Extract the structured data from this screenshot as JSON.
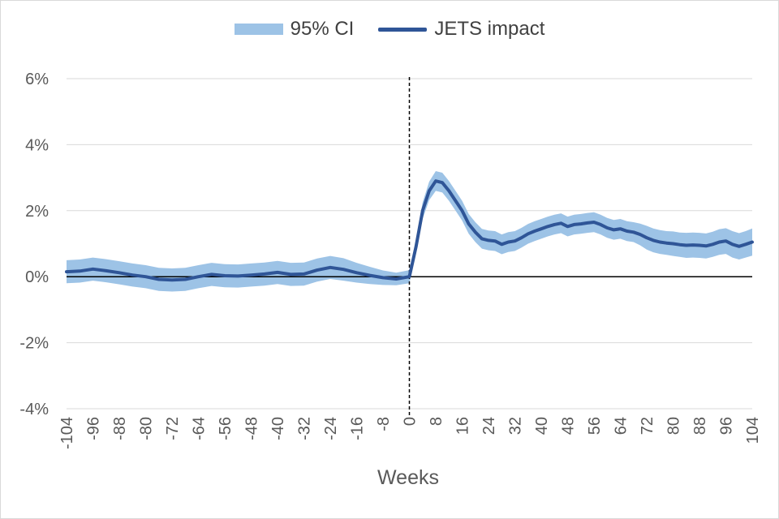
{
  "legend": {
    "band_label": "95% CI",
    "line_label": "JETS impact"
  },
  "colors": {
    "band": "#9dc3e6",
    "line": "#2f5597",
    "grid": "#d9d9d9",
    "axis": "#000000",
    "text": "#595959"
  },
  "chart_data": {
    "type": "line",
    "xlabel": "Weeks",
    "ylabel": "",
    "xlim": [
      -104,
      104
    ],
    "ylim": [
      -0.04,
      0.06
    ],
    "y_ticks": [
      -0.04,
      -0.02,
      0,
      0.02,
      0.04,
      0.06
    ],
    "y_tick_labels": [
      "-4%",
      "-2%",
      "0%",
      "2%",
      "4%",
      "6%"
    ],
    "x_ticks": [
      -104,
      -96,
      -88,
      -80,
      -72,
      -64,
      -56,
      -48,
      -40,
      -32,
      -24,
      -16,
      -8,
      0,
      8,
      16,
      24,
      32,
      40,
      48,
      56,
      64,
      72,
      80,
      88,
      96,
      104
    ],
    "x_tick_labels": [
      "-104",
      "-96",
      "-88",
      "-80",
      "-72",
      "-64",
      "-56",
      "-48",
      "-40",
      "-32",
      "-24",
      "-16",
      "-8",
      "0",
      "8",
      "16",
      "24",
      "32",
      "40",
      "48",
      "56",
      "64",
      "72",
      "80",
      "88",
      "96",
      "104"
    ],
    "grid": true,
    "legend_position": "top-center",
    "reference_line_x": 0,
    "series": [
      {
        "name": "JETS impact",
        "kind": "line",
        "x": [
          -104,
          -100,
          -96,
          -92,
          -88,
          -84,
          -80,
          -76,
          -72,
          -68,
          -64,
          -60,
          -56,
          -52,
          -48,
          -44,
          -40,
          -36,
          -32,
          -28,
          -24,
          -20,
          -16,
          -12,
          -8,
          -4,
          0,
          2,
          4,
          6,
          8,
          10,
          12,
          14,
          16,
          18,
          20,
          22,
          24,
          26,
          28,
          30,
          32,
          34,
          36,
          38,
          40,
          42,
          44,
          46,
          48,
          50,
          52,
          54,
          56,
          58,
          60,
          62,
          64,
          66,
          68,
          70,
          72,
          74,
          76,
          78,
          80,
          82,
          84,
          86,
          88,
          90,
          92,
          94,
          96,
          98,
          100,
          102,
          104
        ],
        "values": [
          0.0015,
          0.0017,
          0.0023,
          0.0018,
          0.0012,
          0.0005,
          0.0,
          -0.0008,
          -0.001,
          -0.0008,
          0.0,
          0.0007,
          0.0003,
          0.0002,
          0.0005,
          0.0008,
          0.0013,
          0.0007,
          0.0008,
          0.002,
          0.0028,
          0.0022,
          0.0012,
          0.0004,
          -0.0003,
          -0.0007,
          0.0,
          0.009,
          0.02,
          0.026,
          0.029,
          0.0285,
          0.026,
          0.023,
          0.02,
          0.016,
          0.0135,
          0.0115,
          0.011,
          0.0108,
          0.0098,
          0.0105,
          0.0108,
          0.0118,
          0.013,
          0.0138,
          0.0145,
          0.0152,
          0.0158,
          0.0162,
          0.0152,
          0.0158,
          0.016,
          0.0163,
          0.0165,
          0.0158,
          0.0148,
          0.0142,
          0.0145,
          0.0138,
          0.0135,
          0.0128,
          0.0118,
          0.011,
          0.0105,
          0.0102,
          0.01,
          0.0097,
          0.0095,
          0.0096,
          0.0095,
          0.0093,
          0.0098,
          0.0105,
          0.0108,
          0.0098,
          0.0092,
          0.0098,
          0.0105
        ]
      },
      {
        "name": "95% CI",
        "kind": "band",
        "x": [
          -104,
          -100,
          -96,
          -92,
          -88,
          -84,
          -80,
          -76,
          -72,
          -68,
          -64,
          -60,
          -56,
          -52,
          -48,
          -44,
          -40,
          -36,
          -32,
          -28,
          -24,
          -20,
          -16,
          -12,
          -8,
          -4,
          0,
          2,
          4,
          6,
          8,
          10,
          12,
          14,
          16,
          18,
          20,
          22,
          24,
          26,
          28,
          30,
          32,
          34,
          36,
          38,
          40,
          42,
          44,
          46,
          48,
          50,
          52,
          54,
          56,
          58,
          60,
          62,
          64,
          66,
          68,
          70,
          72,
          74,
          76,
          78,
          80,
          82,
          84,
          86,
          88,
          90,
          92,
          94,
          96,
          98,
          100,
          102,
          104
        ],
        "lower": [
          -0.002,
          -0.0018,
          -0.0012,
          -0.0017,
          -0.0023,
          -0.003,
          -0.0035,
          -0.0043,
          -0.0045,
          -0.0043,
          -0.0035,
          -0.0028,
          -0.0032,
          -0.0033,
          -0.003,
          -0.0027,
          -0.0022,
          -0.0028,
          -0.0027,
          -0.0015,
          -0.0007,
          -0.0012,
          -0.0018,
          -0.0022,
          -0.0025,
          -0.0026,
          -0.002,
          0.007,
          0.0175,
          0.0232,
          0.026,
          0.0255,
          0.023,
          0.02,
          0.017,
          0.013,
          0.0105,
          0.0085,
          0.008,
          0.0078,
          0.0068,
          0.0075,
          0.0078,
          0.0088,
          0.01,
          0.0108,
          0.0115,
          0.0122,
          0.0128,
          0.0132,
          0.0122,
          0.0128,
          0.013,
          0.0133,
          0.0135,
          0.0128,
          0.0118,
          0.0112,
          0.0115,
          0.0108,
          0.0105,
          0.0095,
          0.0082,
          0.0074,
          0.0069,
          0.0066,
          0.0063,
          0.006,
          0.0057,
          0.0058,
          0.0057,
          0.0055,
          0.006,
          0.0066,
          0.0069,
          0.0058,
          0.0052,
          0.0058,
          0.0064
        ],
        "upper": [
          0.005,
          0.0052,
          0.0058,
          0.0053,
          0.0047,
          0.004,
          0.0035,
          0.0027,
          0.0025,
          0.0027,
          0.0035,
          0.0042,
          0.0038,
          0.0037,
          0.004,
          0.0043,
          0.0048,
          0.0042,
          0.0043,
          0.0055,
          0.0063,
          0.0056,
          0.0042,
          0.003,
          0.0019,
          0.0012,
          0.002,
          0.011,
          0.0225,
          0.0288,
          0.032,
          0.0315,
          0.029,
          0.026,
          0.023,
          0.019,
          0.0165,
          0.0145,
          0.014,
          0.0138,
          0.0128,
          0.0135,
          0.0138,
          0.0148,
          0.016,
          0.0168,
          0.0175,
          0.0182,
          0.0188,
          0.0192,
          0.0182,
          0.0188,
          0.019,
          0.0193,
          0.0195,
          0.0188,
          0.0178,
          0.0172,
          0.0175,
          0.0168,
          0.0165,
          0.0161,
          0.0154,
          0.0146,
          0.0141,
          0.0138,
          0.0137,
          0.0134,
          0.0133,
          0.0134,
          0.0133,
          0.0131,
          0.0136,
          0.0144,
          0.0147,
          0.0138,
          0.0132,
          0.0138,
          0.0146
        ]
      }
    ]
  }
}
